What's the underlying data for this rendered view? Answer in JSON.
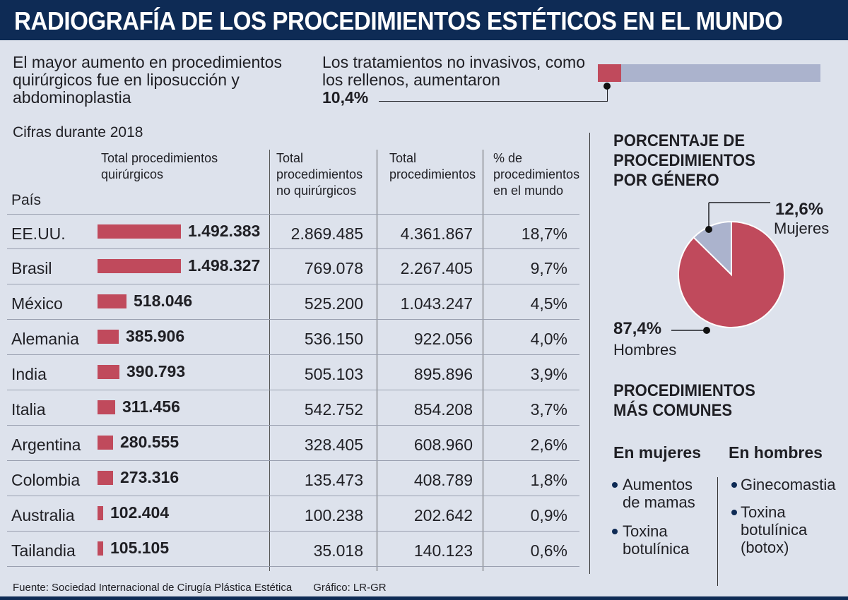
{
  "title": "RADIOGRAFÍA DE LOS PROCEDIMIENTOS ESTÉTICOS EN EL MUNDO",
  "intro_left": "El mayor aumento en procedimientos quirúrgicos fue en liposucción y abdominoplastia",
  "intro_right": "Los tratamientos no invasivos, como los rellenos, aumentaron",
  "intro_right_value": "10,4%",
  "colors": {
    "header": "#0e2b55",
    "bar": "#c04a5c",
    "track": "#abb3cd",
    "background": "#dde2ec"
  },
  "chart_data": [
    {
      "type": "bar",
      "subtitle": "Cifras durante 2018",
      "headers": {
        "country": "País",
        "surgical": "Total procedimientos quirúrgicos",
        "non_surgical": "Total procedimientos no quirúrgicos",
        "total": "Total procedimientos",
        "pct": "% de procedimientos en el mundo"
      },
      "rows": [
        {
          "country": "EE.UU.",
          "surgical": 1492383,
          "surgical_label": "1.492.383",
          "non_surgical": "2.869.485",
          "total": "4.361.867",
          "pct": "18,7%"
        },
        {
          "country": "Brasil",
          "surgical": 1498327,
          "surgical_label": "1.498.327",
          "non_surgical": "769.078",
          "total": "2.267.405",
          "pct": "9,7%"
        },
        {
          "country": "México",
          "surgical": 518046,
          "surgical_label": "518.046",
          "non_surgical": "525.200",
          "total": "1.043.247",
          "pct": "4,5%"
        },
        {
          "country": "Alemania",
          "surgical": 385906,
          "surgical_label": "385.906",
          "non_surgical": "536.150",
          "total": "922.056",
          "pct": "4,0%"
        },
        {
          "country": "India",
          "surgical": 390793,
          "surgical_label": "390.793",
          "non_surgical": "505.103",
          "total": "895.896",
          "pct": "3,9%"
        },
        {
          "country": "Italia",
          "surgical": 311456,
          "surgical_label": "311.456",
          "non_surgical": "542.752",
          "total": "854.208",
          "pct": "3,7%"
        },
        {
          "country": "Argentina",
          "surgical": 280555,
          "surgical_label": "280.555",
          "non_surgical": "328.405",
          "total": "608.960",
          "pct": "2,6%"
        },
        {
          "country": "Colombia",
          "surgical": 273316,
          "surgical_label": "273.316",
          "non_surgical": "135.473",
          "total": "408.789",
          "pct": "1,8%"
        },
        {
          "country": "Australia",
          "surgical": 102404,
          "surgical_label": "102.404",
          "non_surgical": "100.238",
          "total": "202.642",
          "pct": "0,9%"
        },
        {
          "country": "Tailandia",
          "surgical": 105105,
          "surgical_label": "105.105",
          "non_surgical": "35.018",
          "total": "140.123",
          "pct": "0,6%"
        }
      ]
    },
    {
      "type": "pie",
      "title": "PORCENTAJE DE PROCEDIMIENTOS POR GÉNERO",
      "slices": [
        {
          "name": "Mujeres",
          "value": 12.6,
          "label": "12,6%",
          "color": "#abb3cd"
        },
        {
          "name": "Hombres",
          "value": 87.4,
          "label": "87,4%",
          "color": "#c04a5c"
        }
      ]
    }
  ],
  "common": {
    "title": "PROCEDIMIENTOS MÁS COMUNES",
    "women_head": "En mujeres",
    "men_head": "En hombres",
    "women": [
      "Aumentos de mamas",
      "Toxina botulínica"
    ],
    "men": [
      "Ginecomastia",
      "Toxina botulínica (botox)"
    ]
  },
  "footer": {
    "source": "Fuente:  Sociedad Internacional de Cirugía Plástica Estética",
    "graphic": "Gráfico: LR-GR"
  }
}
